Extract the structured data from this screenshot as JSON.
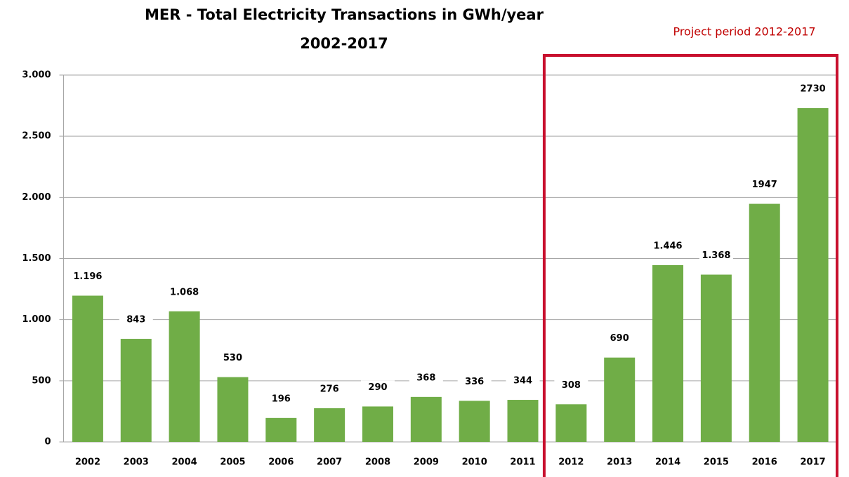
{
  "chart_data": {
    "type": "bar",
    "title": "MER - Total Electricity Transactions in GWh/year",
    "subtitle": "2002-2017",
    "annotation": "Project period 2012-2017",
    "categories": [
      "2002",
      "2003",
      "2004",
      "2005",
      "2006",
      "2007",
      "2008",
      "2009",
      "2010",
      "2011",
      "2012",
      "2013",
      "2014",
      "2015",
      "2016",
      "2017"
    ],
    "values": [
      1196,
      843,
      1068,
      530,
      196,
      276,
      290,
      368,
      336,
      344,
      308,
      690,
      1446,
      1368,
      1947,
      2730
    ],
    "value_labels": [
      "1.196",
      "843",
      "1.068",
      "530",
      "196",
      "276",
      "290",
      "368",
      "336",
      "344",
      "308",
      "690",
      "1.446",
      "1.368",
      "1947",
      "2730"
    ],
    "color": "#70ad47",
    "ylim": [
      0,
      3000
    ],
    "yticks": [
      0,
      500,
      {
        "value": 1000,
        "label": "1.000"
      },
      {
        "value": 1500,
        "label": "1.500"
      },
      {
        "value": 2000,
        "label": "2.000"
      },
      {
        "value": 2500,
        "label": "2.500"
      },
      {
        "value": 3000,
        "label": "3.000"
      }
    ],
    "grid": true
  }
}
